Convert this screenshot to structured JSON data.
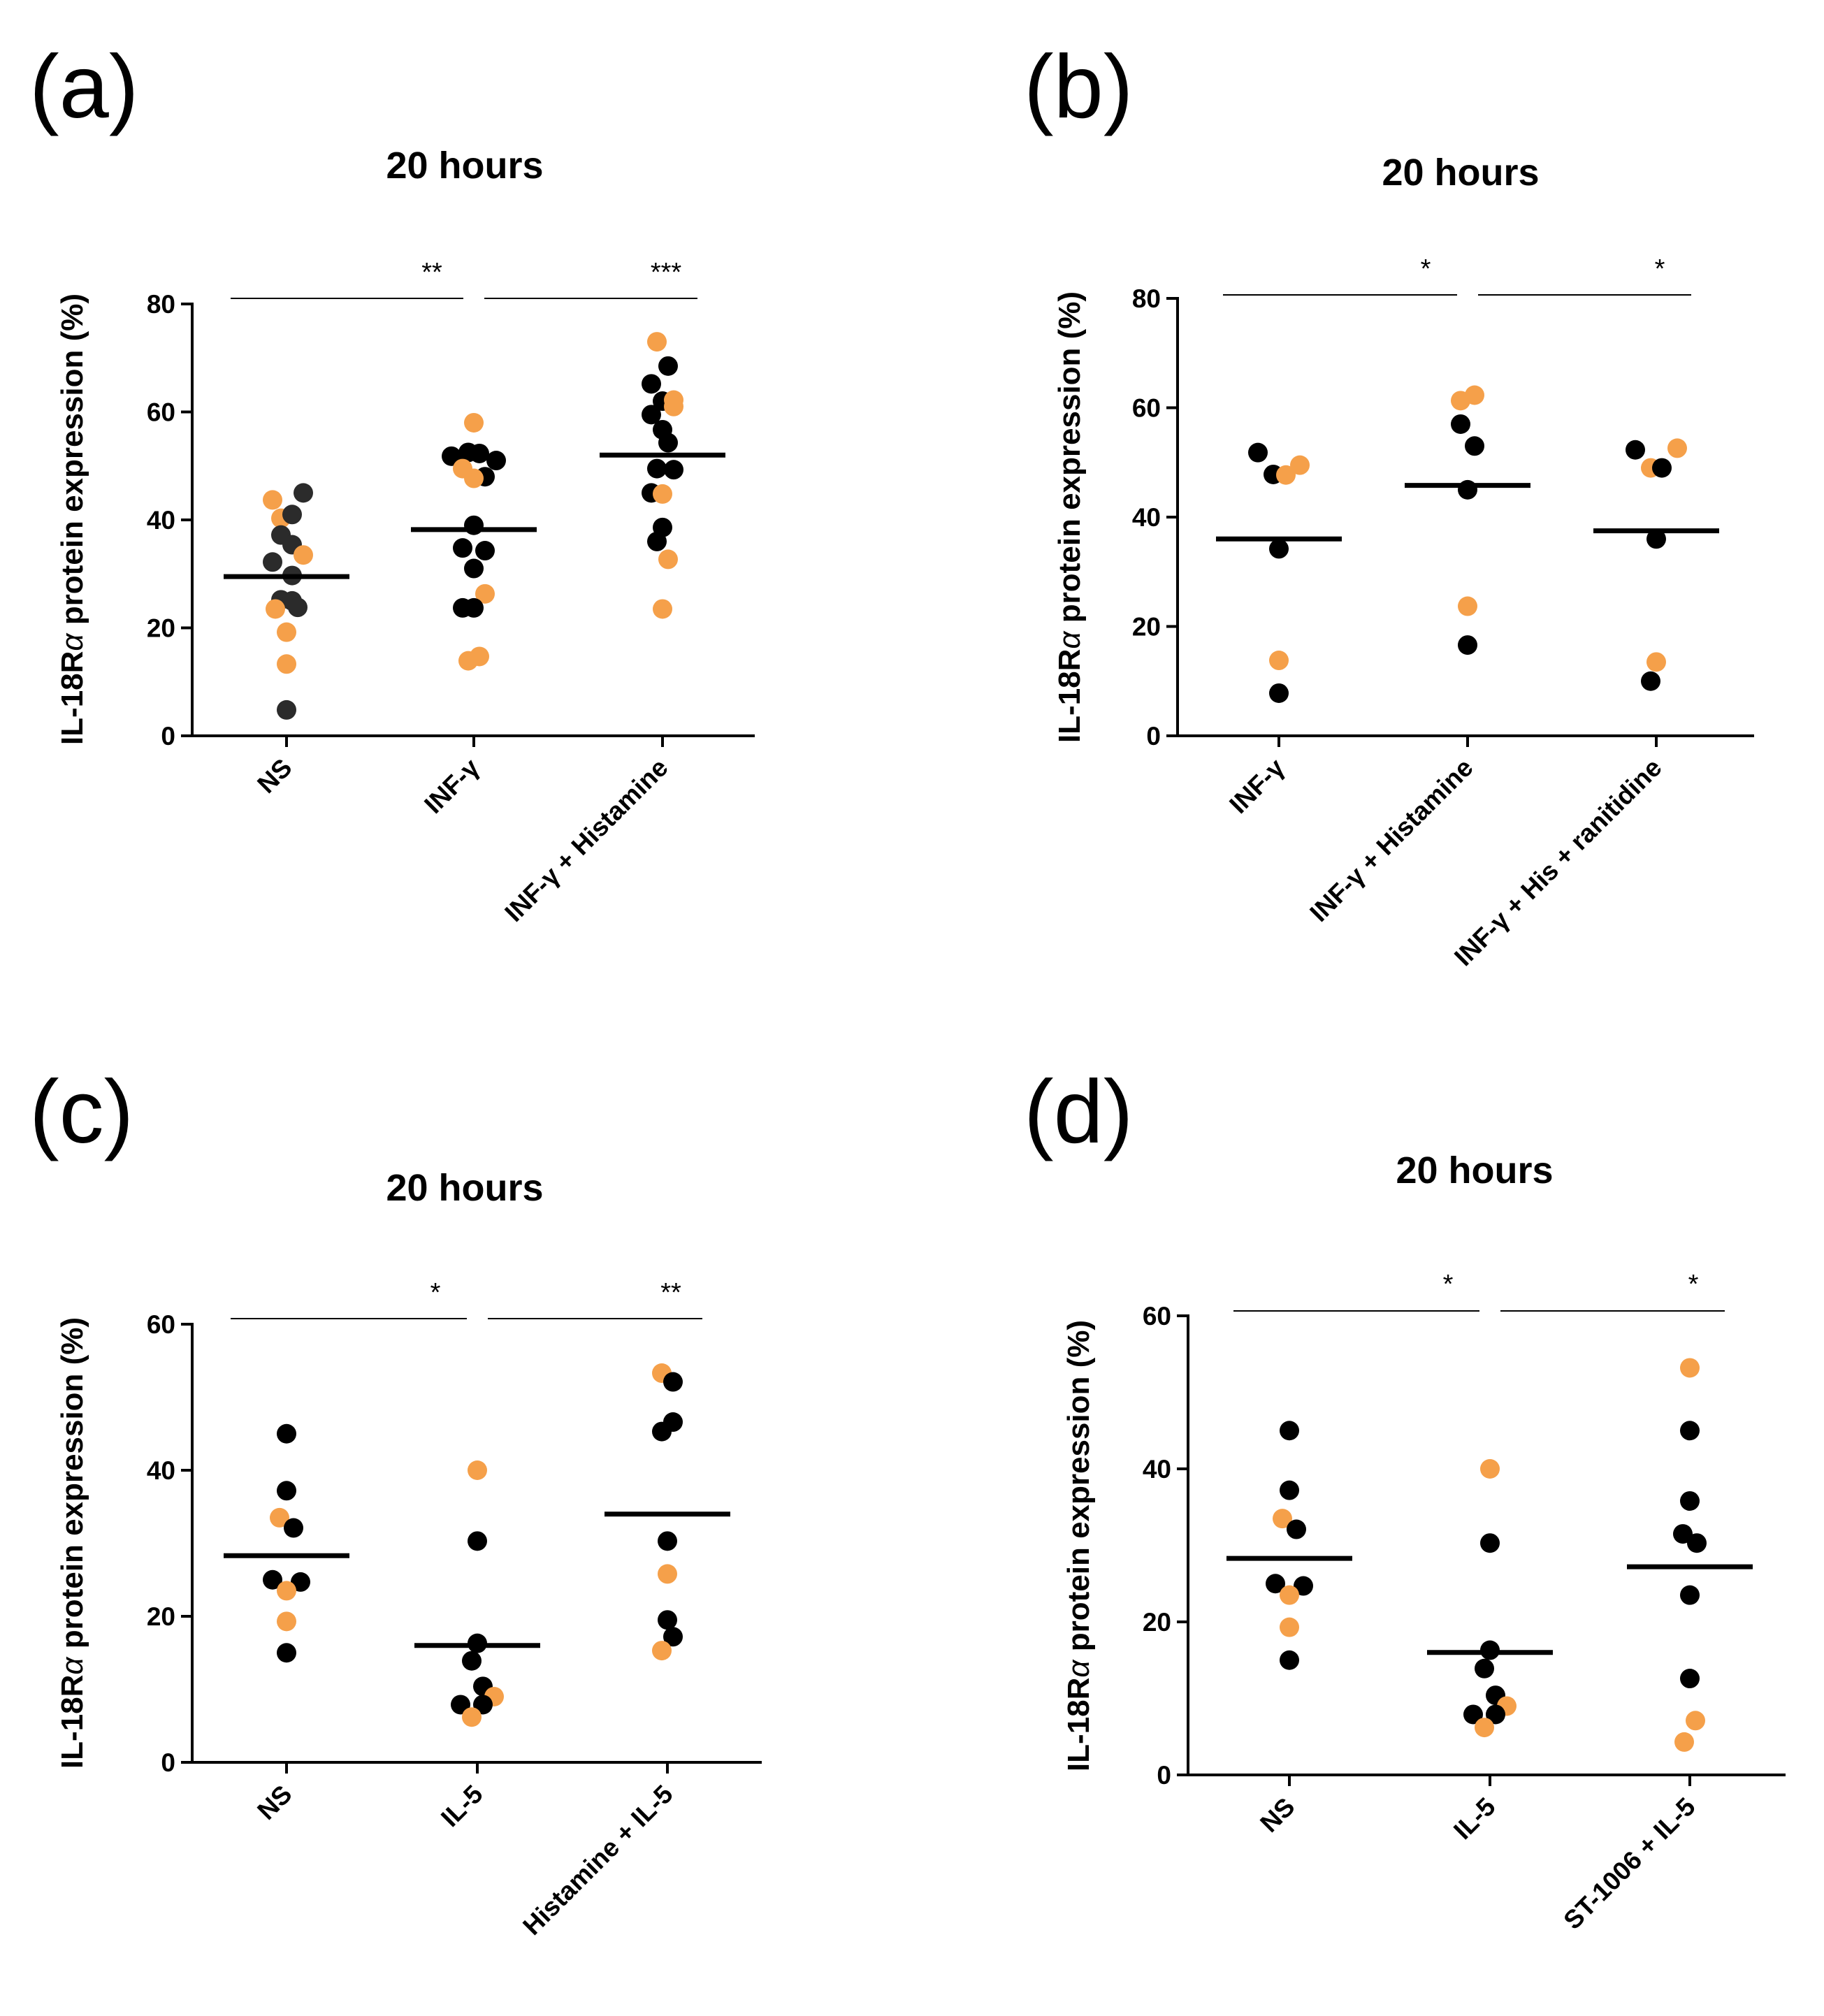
{
  "colors": {
    "orange": "#F5A04A",
    "black": "#000000",
    "gray": "#2b2b2b"
  },
  "chart_data": [
    {
      "type": "scatter",
      "panel": "(a)",
      "title": "20 hours",
      "ylabel_prefix": "IL-18R",
      "ylabel_greek": "α",
      "ylabel_suffix": " protein expression (%)",
      "ylim": [
        0,
        80
      ],
      "yticks": [
        "0",
        "20",
        "40",
        "60",
        "80"
      ],
      "categories": [
        "NS",
        "INF-γ",
        "INF-γ + Histamine"
      ],
      "means": [
        29.5,
        38.2,
        52
      ],
      "points": [
        [
          {
            "y": 43.7,
            "c": "orange",
            "dx": -1
          },
          {
            "y": 40.3,
            "c": "orange",
            "dx": -0.4
          },
          {
            "y": 41,
            "c": "gray",
            "dx": 0.4
          },
          {
            "y": 45,
            "c": "gray",
            "dx": 1.2
          },
          {
            "y": 37.2,
            "c": "gray",
            "dx": -0.4
          },
          {
            "y": 35.4,
            "c": "gray",
            "dx": 0.4
          },
          {
            "y": 33.5,
            "c": "orange",
            "dx": 1.2
          },
          {
            "y": 32.2,
            "c": "gray",
            "dx": -1
          },
          {
            "y": 29.7,
            "c": "gray",
            "dx": 0.4
          },
          {
            "y": 25.2,
            "c": "gray",
            "dx": -0.4
          },
          {
            "y": 25,
            "c": "gray",
            "dx": 0.4
          },
          {
            "y": 23.5,
            "c": "orange",
            "dx": -0.8
          },
          {
            "y": 23.8,
            "c": "gray",
            "dx": 0.8
          },
          {
            "y": 19.2,
            "c": "orange",
            "dx": 0
          },
          {
            "y": 13.3,
            "c": "orange",
            "dx": 0
          },
          {
            "y": 4.8,
            "c": "gray",
            "dx": 0
          }
        ],
        [
          {
            "y": 58,
            "c": "orange",
            "dx": 0
          },
          {
            "y": 51.8,
            "c": "black",
            "dx": -1.6
          },
          {
            "y": 52.5,
            "c": "black",
            "dx": -0.4
          },
          {
            "y": 52.3,
            "c": "black",
            "dx": 0.4
          },
          {
            "y": 51,
            "c": "black",
            "dx": 1.6
          },
          {
            "y": 49.5,
            "c": "orange",
            "dx": -0.8
          },
          {
            "y": 48,
            "c": "black",
            "dx": 0.8
          },
          {
            "y": 47.7,
            "c": "orange",
            "dx": 0
          },
          {
            "y": 39,
            "c": "black",
            "dx": 0
          },
          {
            "y": 34.8,
            "c": "black",
            "dx": -0.8
          },
          {
            "y": 34.3,
            "c": "black",
            "dx": 0.8
          },
          {
            "y": 31,
            "c": "black",
            "dx": 0
          },
          {
            "y": 26.3,
            "c": "orange",
            "dx": 0.8
          },
          {
            "y": 23.7,
            "c": "black",
            "dx": -0.8
          },
          {
            "y": 23.7,
            "c": "black",
            "dx": 0
          },
          {
            "y": 14.7,
            "c": "orange",
            "dx": 0.4
          },
          {
            "y": 13.9,
            "c": "orange",
            "dx": -0.4
          }
        ],
        [
          {
            "y": 73,
            "c": "orange",
            "dx": -0.4
          },
          {
            "y": 68.5,
            "c": "black",
            "dx": 0.4
          },
          {
            "y": 65.2,
            "c": "black",
            "dx": -0.8
          },
          {
            "y": 62,
            "c": "black",
            "dx": 0
          },
          {
            "y": 62.2,
            "c": "orange",
            "dx": 0.8
          },
          {
            "y": 61,
            "c": "orange",
            "dx": 0.8
          },
          {
            "y": 59.5,
            "c": "black",
            "dx": -0.8
          },
          {
            "y": 56.7,
            "c": "black",
            "dx": 0
          },
          {
            "y": 54.3,
            "c": "black",
            "dx": 0.4
          },
          {
            "y": 49.5,
            "c": "black",
            "dx": -0.4
          },
          {
            "y": 49.3,
            "c": "black",
            "dx": 0.8
          },
          {
            "y": 45,
            "c": "black",
            "dx": -0.8
          },
          {
            "y": 44.8,
            "c": "orange",
            "dx": 0
          },
          {
            "y": 38.6,
            "c": "black",
            "dx": 0
          },
          {
            "y": 36,
            "c": "black",
            "dx": -0.4
          },
          {
            "y": 32.7,
            "c": "orange",
            "dx": 0.4
          },
          {
            "y": 23.5,
            "c": "orange",
            "dx": 0
          }
        ]
      ],
      "significance": [
        {
          "from": 0,
          "to": 1,
          "label": "**"
        },
        {
          "from": 1,
          "to": 2,
          "label": "***"
        }
      ]
    },
    {
      "type": "scatter",
      "panel": "(b)",
      "title": "20 hours",
      "ylabel_prefix": "IL-18R",
      "ylabel_greek": "α",
      "ylabel_suffix": " protein expression (%)",
      "ylim": [
        0,
        80
      ],
      "yticks": [
        "0",
        "20",
        "40",
        "60",
        "80"
      ],
      "categories": [
        "INF-γ",
        "INF-γ + Histamine",
        "INF-γ + His + ranitidine"
      ],
      "means": [
        36,
        45.8,
        37.5
      ],
      "points": [
        [
          {
            "y": 51.8,
            "c": "black",
            "dx": -1.5
          },
          {
            "y": 49.5,
            "c": "orange",
            "dx": 1.5
          },
          {
            "y": 47.8,
            "c": "black",
            "dx": -0.4
          },
          {
            "y": 47.7,
            "c": "orange",
            "dx": 0.5
          },
          {
            "y": 34.2,
            "c": "black",
            "dx": 0
          },
          {
            "y": 13.8,
            "c": "orange",
            "dx": 0
          },
          {
            "y": 7.8,
            "c": "black",
            "dx": 0
          }
        ],
        [
          {
            "y": 62.3,
            "c": "orange",
            "dx": 0.5
          },
          {
            "y": 61.3,
            "c": "orange",
            "dx": -0.5
          },
          {
            "y": 57,
            "c": "black",
            "dx": -0.5
          },
          {
            "y": 53,
            "c": "black",
            "dx": 0.5
          },
          {
            "y": 45,
            "c": "black",
            "dx": 0
          },
          {
            "y": 23.7,
            "c": "orange",
            "dx": 0
          },
          {
            "y": 16.6,
            "c": "black",
            "dx": 0
          }
        ],
        [
          {
            "y": 52.6,
            "c": "orange",
            "dx": 1.5
          },
          {
            "y": 52.3,
            "c": "black",
            "dx": -1.5
          },
          {
            "y": 49,
            "c": "orange",
            "dx": -0.4
          },
          {
            "y": 49,
            "c": "black",
            "dx": 0.4
          },
          {
            "y": 36,
            "c": "black",
            "dx": 0
          },
          {
            "y": 13.5,
            "c": "orange",
            "dx": 0
          },
          {
            "y": 10,
            "c": "black",
            "dx": -0.4
          }
        ]
      ],
      "significance": [
        {
          "from": 0,
          "to": 1,
          "label": "*"
        },
        {
          "from": 1,
          "to": 2,
          "label": "*"
        }
      ]
    },
    {
      "type": "scatter",
      "panel": "(c)",
      "title": "20 hours",
      "ylabel_prefix": "IL-18R",
      "ylabel_greek": "α",
      "ylabel_suffix": " protein expression (%)",
      "ylim": [
        0,
        60
      ],
      "yticks": [
        "0",
        "20",
        "40",
        "60"
      ],
      "categories": [
        "NS",
        "IL-5",
        "Histamine + IL-5"
      ],
      "means": [
        28.3,
        16,
        34
      ],
      "points": [
        [
          {
            "y": 45,
            "c": "black",
            "dx": 0
          },
          {
            "y": 37.2,
            "c": "black",
            "dx": 0
          },
          {
            "y": 33.5,
            "c": "orange",
            "dx": -0.5
          },
          {
            "y": 32.1,
            "c": "black",
            "dx": 0.5
          },
          {
            "y": 25,
            "c": "black",
            "dx": -1
          },
          {
            "y": 24.7,
            "c": "black",
            "dx": 1
          },
          {
            "y": 23.5,
            "c": "orange",
            "dx": 0
          },
          {
            "y": 19.3,
            "c": "orange",
            "dx": 0
          },
          {
            "y": 15,
            "c": "black",
            "dx": 0
          }
        ],
        [
          {
            "y": 40,
            "c": "orange",
            "dx": 0
          },
          {
            "y": 30.3,
            "c": "black",
            "dx": 0
          },
          {
            "y": 16.3,
            "c": "black",
            "dx": 0
          },
          {
            "y": 13.9,
            "c": "black",
            "dx": -0.4
          },
          {
            "y": 10.4,
            "c": "black",
            "dx": 0.4
          },
          {
            "y": 9,
            "c": "orange",
            "dx": 1.2
          },
          {
            "y": 7.9,
            "c": "black",
            "dx": -1.2
          },
          {
            "y": 7.9,
            "c": "black",
            "dx": 0.4
          },
          {
            "y": 6.2,
            "c": "orange",
            "dx": -0.4
          }
        ],
        [
          {
            "y": 53.3,
            "c": "orange",
            "dx": -0.4
          },
          {
            "y": 52.1,
            "c": "black",
            "dx": 0.4
          },
          {
            "y": 46.6,
            "c": "black",
            "dx": 0.4
          },
          {
            "y": 45.3,
            "c": "black",
            "dx": -0.4
          },
          {
            "y": 30.3,
            "c": "black",
            "dx": 0
          },
          {
            "y": 25.8,
            "c": "orange",
            "dx": 0
          },
          {
            "y": 19.5,
            "c": "black",
            "dx": 0
          },
          {
            "y": 17.2,
            "c": "black",
            "dx": 0.4
          },
          {
            "y": 15.3,
            "c": "orange",
            "dx": -0.4
          }
        ]
      ],
      "significance": [
        {
          "from": 0,
          "to": 1,
          "label": "*"
        },
        {
          "from": 1,
          "to": 2,
          "label": "**"
        }
      ]
    },
    {
      "type": "scatter",
      "panel": "(d)",
      "title": "20 hours",
      "ylabel_prefix": "IL-18R",
      "ylabel_greek": "α",
      "ylabel_suffix": " protein expression (%)",
      "ylim": [
        0,
        60
      ],
      "yticks": [
        "0",
        "20",
        "40",
        "60"
      ],
      "categories": [
        "NS",
        "IL-5",
        "ST-1006 + IL-5"
      ],
      "means": [
        28.3,
        16,
        27.2
      ],
      "points": [
        [
          {
            "y": 45,
            "c": "black",
            "dx": 0
          },
          {
            "y": 37.2,
            "c": "black",
            "dx": 0
          },
          {
            "y": 33.5,
            "c": "orange",
            "dx": -0.5
          },
          {
            "y": 32.1,
            "c": "black",
            "dx": 0.5
          },
          {
            "y": 25,
            "c": "black",
            "dx": -1
          },
          {
            "y": 24.7,
            "c": "black",
            "dx": 1
          },
          {
            "y": 23.5,
            "c": "orange",
            "dx": 0
          },
          {
            "y": 19.3,
            "c": "orange",
            "dx": 0
          },
          {
            "y": 15,
            "c": "black",
            "dx": 0
          }
        ],
        [
          {
            "y": 40,
            "c": "orange",
            "dx": 0
          },
          {
            "y": 30.3,
            "c": "black",
            "dx": 0
          },
          {
            "y": 16.3,
            "c": "black",
            "dx": 0
          },
          {
            "y": 13.9,
            "c": "black",
            "dx": -0.4
          },
          {
            "y": 10.4,
            "c": "black",
            "dx": 0.4
          },
          {
            "y": 9,
            "c": "orange",
            "dx": 1.2
          },
          {
            "y": 7.9,
            "c": "black",
            "dx": -1.2
          },
          {
            "y": 7.9,
            "c": "black",
            "dx": 0.4
          },
          {
            "y": 6.2,
            "c": "orange",
            "dx": -0.4
          }
        ],
        [
          {
            "y": 53.2,
            "c": "orange",
            "dx": 0
          },
          {
            "y": 45,
            "c": "black",
            "dx": 0
          },
          {
            "y": 35.8,
            "c": "black",
            "dx": 0
          },
          {
            "y": 31.5,
            "c": "black",
            "dx": -0.5
          },
          {
            "y": 30.3,
            "c": "black",
            "dx": 0.5
          },
          {
            "y": 23.5,
            "c": "black",
            "dx": 0
          },
          {
            "y": 12.6,
            "c": "black",
            "dx": 0
          },
          {
            "y": 7.1,
            "c": "orange",
            "dx": 0.4
          },
          {
            "y": 4.3,
            "c": "orange",
            "dx": -0.4
          }
        ]
      ],
      "significance": [
        {
          "from": 0,
          "to": 1,
          "label": "*"
        },
        {
          "from": 1,
          "to": 2,
          "label": "*"
        }
      ]
    }
  ]
}
